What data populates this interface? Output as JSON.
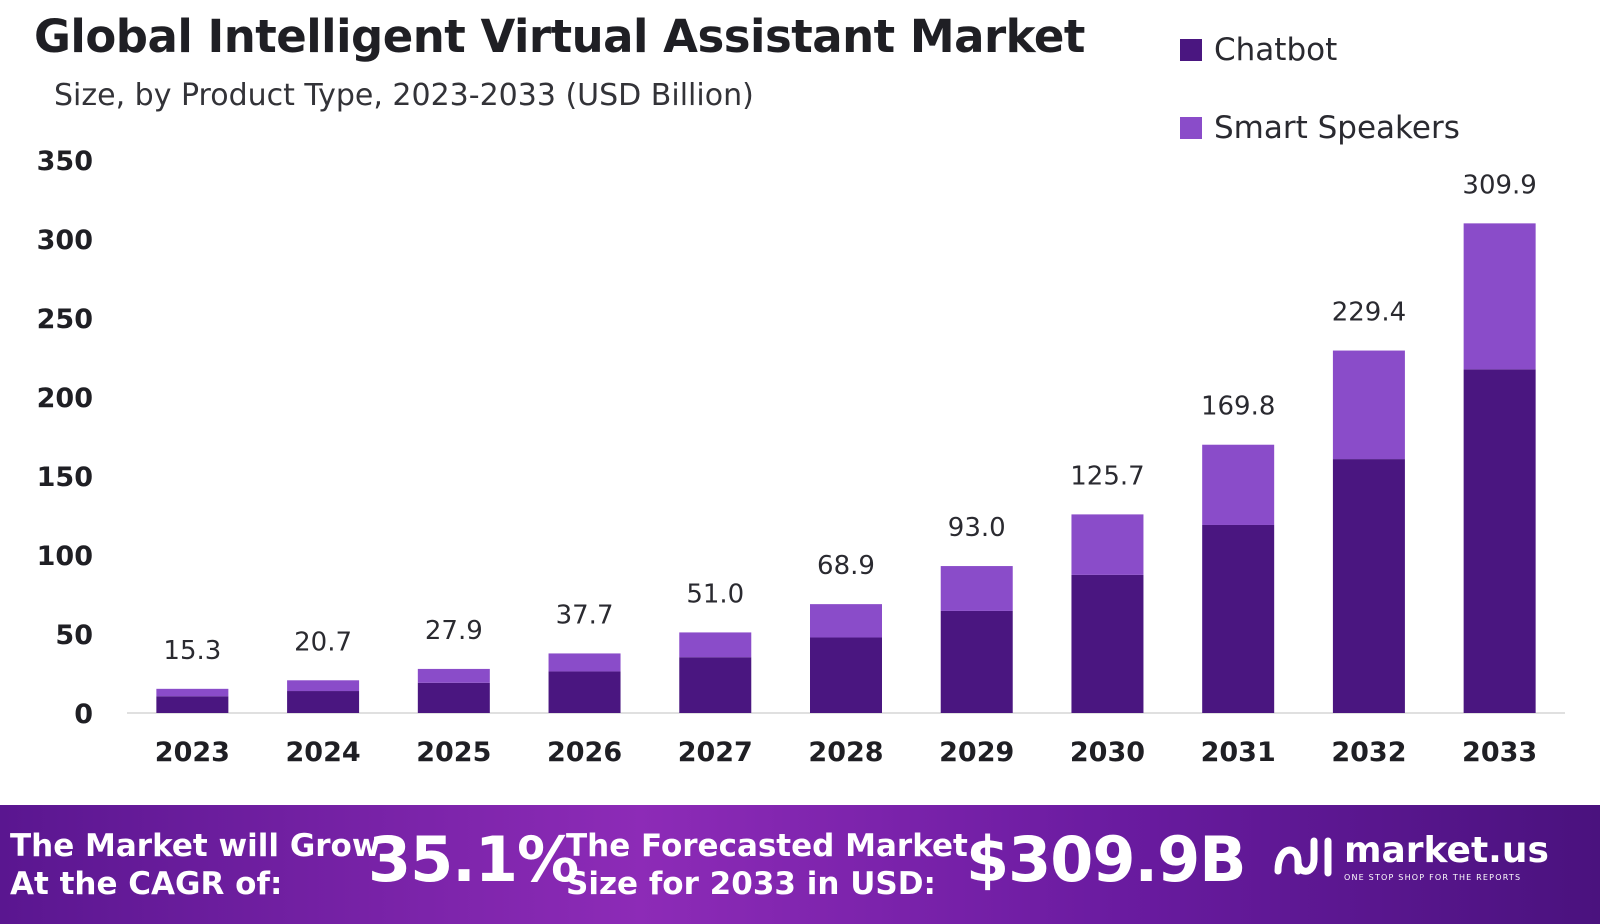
{
  "colors": {
    "chatbot": "#4a1680",
    "smart_speakers": "#8a4cc9",
    "banner": "#7a22aa"
  },
  "icons": {
    "logo": "market-us-logo-icon"
  },
  "chart_data": {
    "type": "bar",
    "stacked": true,
    "title": "Global Intelligent Virtual Assistant Market",
    "subtitle": "Size, by Product Type, 2023-2033 (USD Billion)",
    "xlabel": "",
    "ylabel": "",
    "ylim": [
      0,
      350
    ],
    "yticks": [
      0,
      50,
      100,
      150,
      200,
      250,
      300,
      350
    ],
    "grid": false,
    "legend_position": "top-right",
    "categories": [
      "2023",
      "2024",
      "2025",
      "2026",
      "2027",
      "2028",
      "2029",
      "2030",
      "2031",
      "2032",
      "2033"
    ],
    "series": [
      {
        "name": "Chatbot",
        "values": [
          10.6,
          13.9,
          19.1,
          26.3,
          35.3,
          47.8,
          64.6,
          87.4,
          119.0,
          160.7,
          217.5
        ]
      },
      {
        "name": "Smart Speakers",
        "values": [
          4.7,
          6.8,
          8.8,
          11.4,
          15.7,
          21.1,
          28.4,
          38.3,
          50.8,
          68.7,
          92.4
        ]
      }
    ],
    "totals": [
      15.3,
      20.7,
      27.9,
      37.7,
      51.0,
      68.9,
      93.0,
      125.7,
      169.8,
      229.4,
      309.9
    ],
    "total_labels": [
      "15.3",
      "20.7",
      "27.9",
      "37.7",
      "51.0",
      "68.9",
      "93.0",
      "125.7",
      "169.8",
      "229.4",
      "309.9"
    ]
  },
  "banner": {
    "cagr_line1": "The Market will Grow",
    "cagr_line2": "At the CAGR of:",
    "cagr_value": "35.1%",
    "forecast_line1": "The Forecasted Market",
    "forecast_line2": "Size for 2033 in USD:",
    "forecast_value": "$309.9B",
    "brand": "market.us",
    "tagline": "ONE STOP SHOP FOR THE REPORTS"
  }
}
